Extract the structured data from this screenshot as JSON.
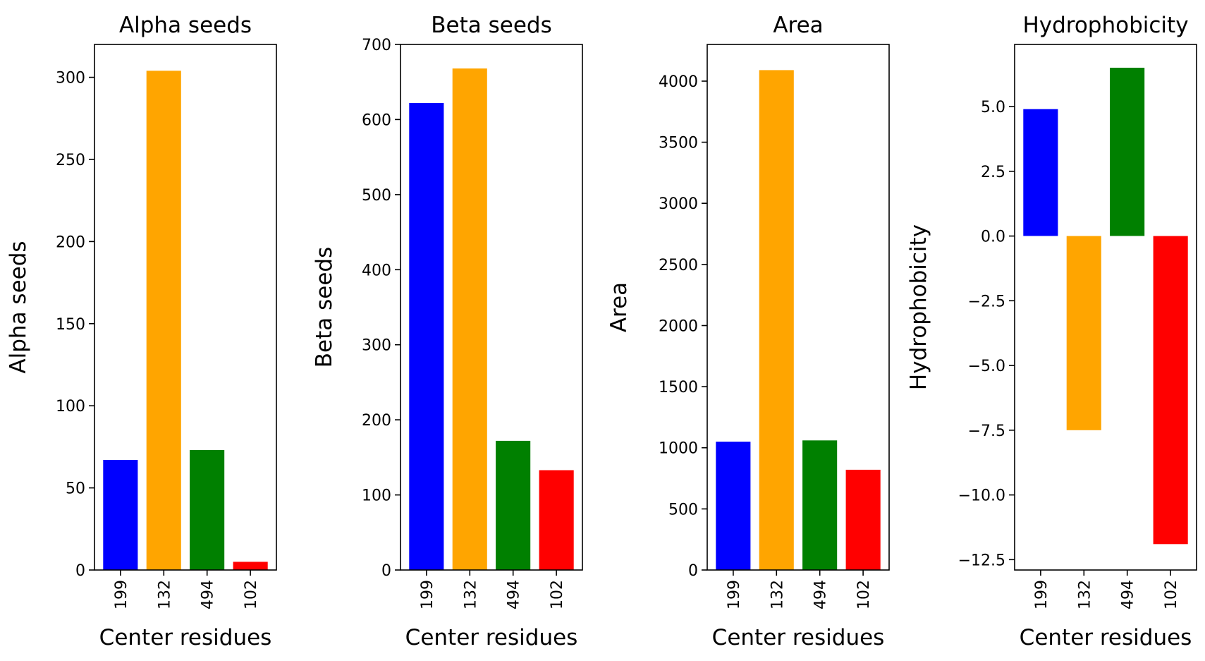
{
  "chart_data": [
    {
      "type": "bar",
      "title": "Alpha seeds",
      "xlabel": "Center residues",
      "ylabel": "Alpha seeds",
      "categories": [
        "199",
        "132",
        "494",
        "102"
      ],
      "values": [
        67,
        304,
        73,
        5
      ],
      "colors": [
        "#0000ff",
        "#ffa500",
        "#008000",
        "#ff0000"
      ],
      "ylim": [
        0,
        320
      ],
      "yticks": [
        0,
        50,
        100,
        150,
        200,
        250,
        300
      ],
      "ytick_labels": [
        "0",
        "50",
        "100",
        "150",
        "200",
        "250",
        "300"
      ],
      "grid": false
    },
    {
      "type": "bar",
      "title": "Beta seeds",
      "xlabel": "Center residues",
      "ylabel": "Beta seeds",
      "categories": [
        "199",
        "132",
        "494",
        "102"
      ],
      "values": [
        622,
        668,
        172,
        133
      ],
      "colors": [
        "#0000ff",
        "#ffa500",
        "#008000",
        "#ff0000"
      ],
      "ylim": [
        0,
        700
      ],
      "yticks": [
        0,
        100,
        200,
        300,
        400,
        500,
        600,
        700
      ],
      "ytick_labels": [
        "0",
        "100",
        "200",
        "300",
        "400",
        "500",
        "600",
        "700"
      ],
      "grid": false
    },
    {
      "type": "bar",
      "title": "Area",
      "xlabel": "Center residues",
      "ylabel": "Area",
      "categories": [
        "199",
        "132",
        "494",
        "102"
      ],
      "values": [
        1050,
        4090,
        1060,
        820
      ],
      "colors": [
        "#0000ff",
        "#ffa500",
        "#008000",
        "#ff0000"
      ],
      "ylim": [
        0,
        4300
      ],
      "yticks": [
        0,
        500,
        1000,
        1500,
        2000,
        2500,
        3000,
        3500,
        4000
      ],
      "ytick_labels": [
        "0",
        "500",
        "1000",
        "1500",
        "2000",
        "2500",
        "3000",
        "3500",
        "4000"
      ],
      "grid": false
    },
    {
      "type": "bar",
      "title": "Hydrophobicity",
      "xlabel": "Center residues",
      "ylabel": "Hydrophobicity",
      "categories": [
        "199",
        "132",
        "494",
        "102"
      ],
      "values": [
        4.9,
        -7.5,
        6.5,
        -11.9
      ],
      "colors": [
        "#0000ff",
        "#ffa500",
        "#008000",
        "#ff0000"
      ],
      "ylim": [
        -12.9,
        7.4
      ],
      "yticks": [
        -12.5,
        -10,
        -7.5,
        -5,
        -2.5,
        0,
        2.5,
        5
      ],
      "ytick_labels": [
        "−12.5",
        "−10.0",
        "−7.5",
        "−5.0",
        "−2.5",
        "0.0",
        "2.5",
        "5.0"
      ],
      "grid": false
    }
  ]
}
